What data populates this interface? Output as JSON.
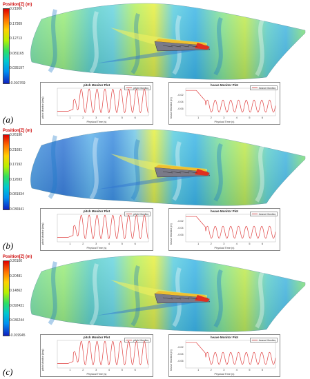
{
  "panels": [
    {
      "label": "(a)",
      "colorbar": {
        "title": "Position[Z] (m)",
        "ticks": [
          "0.21906",
          "0.17309",
          "0.12713",
          "0.081165",
          "0.035197",
          "-0.010769"
        ]
      },
      "pitch_plot": {
        "title": "pitch Monitor Plot",
        "legend": "pitch Monitor",
        "ylabel": "pitch Monitor (deg)",
        "xlabel": "Physical Time (s)",
        "x_ticks": [
          "1",
          "2",
          "3",
          "4",
          "5",
          "6"
        ]
      },
      "heave_plot": {
        "title": "heave Monitor Plot",
        "legend": "heave Monitor",
        "ylabel": "heave Monitor (m)",
        "xlabel": "Physical Time (s)",
        "x_ticks": [
          "1",
          "2",
          "3",
          "4",
          "5",
          "6"
        ],
        "y_ticks": [
          "-0.02",
          "-0.04",
          "-0.06"
        ]
      }
    },
    {
      "label": "(b)",
      "colorbar": {
        "title": "Position[Z] (m)",
        "ticks": [
          "0.26190",
          "0.21691",
          "0.17192",
          "0.12693",
          "0.081934",
          "0.036941"
        ]
      },
      "pitch_plot": {
        "title": "pitch Monitor Plot",
        "legend": "pitch Monitor",
        "ylabel": "pitch Monitor (deg)",
        "xlabel": "Physical Time (s)",
        "x_ticks": [
          "1",
          "2",
          "3",
          "4",
          "5",
          "6"
        ]
      },
      "heave_plot": {
        "title": "heave Monitor Plot",
        "legend": "heave Monitor",
        "ylabel": "heave Monitor (m)",
        "xlabel": "Physical Time (s)",
        "x_ticks": [
          "1",
          "2",
          "3",
          "4",
          "5",
          "6"
        ],
        "y_ticks": [
          "-0.02",
          "-0.04",
          "-0.06"
        ]
      }
    },
    {
      "label": "(c)",
      "colorbar": {
        "title": "Position[Z] (m)",
        "ticks": [
          "0.26100",
          "0.20481",
          "0.14862",
          "0.092431",
          "0.036244",
          "-0.019945"
        ]
      },
      "pitch_plot": {
        "title": "pitch Monitor Plot",
        "legend": "pitch Monitor",
        "ylabel": "pitch Monitor (deg)",
        "xlabel": "Physical Time (s)",
        "x_ticks": [
          "1",
          "2",
          "3",
          "4",
          "5",
          "6"
        ]
      },
      "heave_plot": {
        "title": "heave Monitor Plot",
        "legend": "heave Monitor",
        "ylabel": "heave Monitor (m)",
        "xlabel": "Physical Time (s)",
        "x_ticks": [
          "1",
          "2",
          "3",
          "4",
          "5",
          "6"
        ],
        "y_ticks": [
          "-0.02",
          "-0.04",
          "-0.06"
        ]
      }
    }
  ],
  "colors": {
    "curve": "#e04040",
    "colorbar_top": "#e00000",
    "colorbar_bottom": "#1020c0"
  }
}
